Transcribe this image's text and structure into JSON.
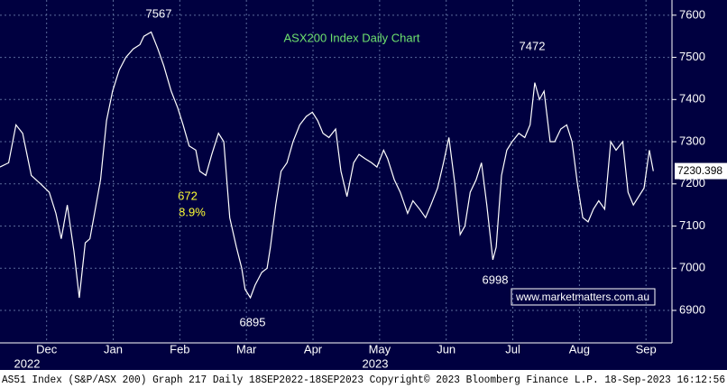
{
  "chart_data": {
    "type": "line",
    "title": "ASX200 Index Daily Chart",
    "series": [
      {
        "name": "ASX200",
        "color": "#ffffff",
        "x": [
          -0.2,
          -0.07,
          0.04,
          0.14,
          0.27,
          0.41,
          0.54,
          0.64,
          0.72,
          0.81,
          0.91,
          0.99,
          1.08,
          1.15,
          1.22,
          1.31,
          1.4,
          1.49,
          1.59,
          1.69,
          1.8,
          1.9,
          1.96,
          2.07,
          2.17,
          2.26,
          2.37,
          2.47,
          2.55,
          2.64,
          2.74,
          2.8,
          2.89,
          2.98,
          3.08,
          3.16,
          3.25,
          3.35,
          3.43,
          3.48,
          3.56,
          3.63,
          3.73,
          3.81,
          3.86,
          3.94,
          4.02,
          4.11,
          4.2,
          4.3,
          4.4,
          4.49,
          4.57,
          4.65,
          4.74,
          4.84,
          4.92,
          5.01,
          5.11,
          5.19,
          5.28,
          5.38,
          5.46,
          5.56,
          5.62,
          5.72,
          5.81,
          5.92,
          6.0,
          6.1,
          6.19,
          6.27,
          6.37,
          6.46,
          6.54,
          6.63,
          6.71,
          6.78,
          6.86,
          6.95,
          7.03,
          7.11,
          7.2,
          7.25,
          7.33,
          7.41,
          7.49,
          7.59,
          7.68,
          7.76,
          7.83,
          7.9,
          7.97,
          8.06,
          8.13,
          8.22,
          8.31,
          8.39,
          8.47,
          8.55,
          8.63,
          8.71,
          8.79,
          8.88,
          8.97,
          9.05,
          9.15,
          9.23,
          9.31,
          9.39,
          9.47,
          9.55,
          9.61
        ],
        "values": [
          7240,
          7250,
          7340,
          7320,
          7220,
          7200,
          7180,
          7130,
          7070,
          7150,
          7040,
          6930,
          7060,
          7070,
          7130,
          7210,
          7350,
          7420,
          7470,
          7500,
          7520,
          7530,
          7550,
          7560,
          7520,
          7480,
          7420,
          7380,
          7340,
          7290,
          7280,
          7230,
          7220,
          7270,
          7320,
          7300,
          7120,
          7050,
          7000,
          6950,
          6930,
          6960,
          6990,
          7000,
          7050,
          7150,
          7230,
          7250,
          7300,
          7340,
          7360,
          7370,
          7350,
          7320,
          7310,
          7330,
          7230,
          7170,
          7250,
          7270,
          7260,
          7250,
          7240,
          7280,
          7260,
          7210,
          7180,
          7130,
          7160,
          7140,
          7120,
          7150,
          7190,
          7250,
          7310,
          7200,
          7080,
          7100,
          7180,
          7210,
          7250,
          7150,
          7020,
          7050,
          7220,
          7280,
          7300,
          7320,
          7310,
          7340,
          7440,
          7400,
          7420,
          7300,
          7300,
          7330,
          7340,
          7300,
          7200,
          7120,
          7110,
          7140,
          7160,
          7140,
          7300,
          7280,
          7300,
          7180,
          7150,
          7170,
          7190,
          7280,
          7230.398
        ]
      }
    ],
    "xlim": [
      -0.2,
      9.89
    ],
    "xticks": [
      {
        "value": 0.5,
        "label": "Dec"
      },
      {
        "value": 1.5,
        "label": "Jan"
      },
      {
        "value": 2.5,
        "label": "Feb"
      },
      {
        "value": 3.5,
        "label": "Mar"
      },
      {
        "value": 4.5,
        "label": "Apr"
      },
      {
        "value": 5.5,
        "label": "May"
      },
      {
        "value": 6.5,
        "label": "Jun"
      },
      {
        "value": 7.5,
        "label": "Jul"
      },
      {
        "value": 8.5,
        "label": "Aug"
      },
      {
        "value": 9.5,
        "label": "Sep"
      }
    ],
    "year_labels": [
      "2022",
      "2023"
    ],
    "ylim": [
      6823,
      7636
    ],
    "yticks": [
      6900,
      7000,
      7100,
      7200,
      7300,
      7400,
      7500,
      7600
    ],
    "grid": true,
    "annotations": [
      "7567",
      "7472",
      "6895",
      "6998",
      "672",
      "8.9%"
    ],
    "watermark": "www.marketmatters.com.au",
    "footer": "AS51 Index (S&P/ASX 200) Graph 217  Daily 18SEP2022-18SEP2023  Copyright© 2023 Bloomberg Finance L.P.   18-Sep-2023 16:12:56"
  }
}
